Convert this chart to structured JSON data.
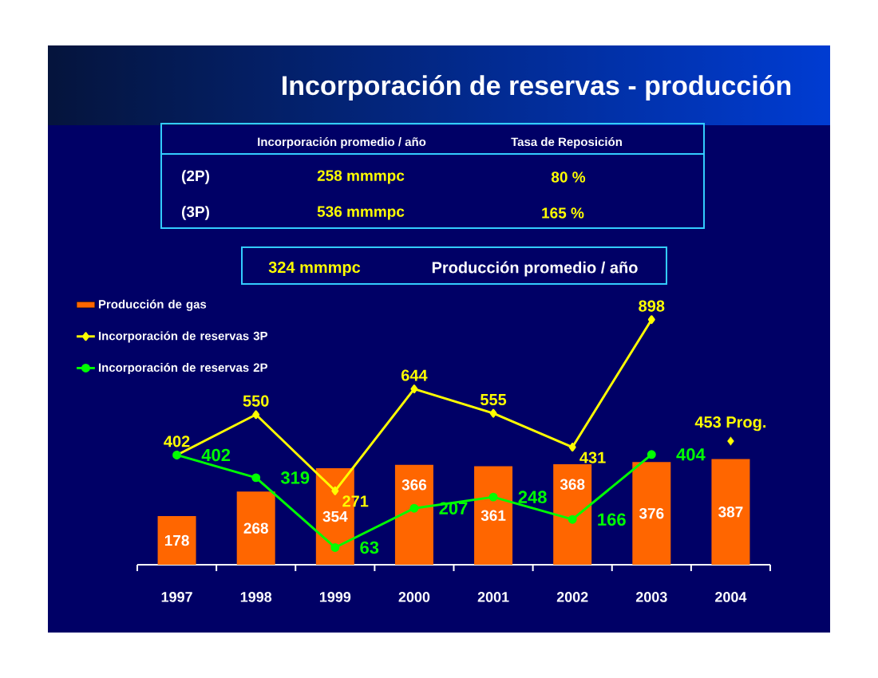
{
  "chart_data": {
    "type": "bar",
    "title": "Incorporación de reservas - producción",
    "categories": [
      "1997",
      "1998",
      "1999",
      "2000",
      "2001",
      "2002",
      "2003",
      "2004"
    ],
    "series": [
      {
        "name": "Producción de gas",
        "color": "#ff6600",
        "values": [
          178,
          268,
          354,
          366,
          361,
          368,
          376,
          387
        ]
      },
      {
        "name": "Incorporación de reservas 3P",
        "type": "line",
        "color": "#ffff00",
        "marker": "diamond",
        "values": [
          402,
          550,
          271,
          644,
          555,
          431,
          898,
          null
        ]
      },
      {
        "name": "Incorporación de reservas 2P",
        "type": "line",
        "color": "#00ff00",
        "marker": "circle",
        "values": [
          402,
          319,
          63,
          207,
          248,
          166,
          404,
          null
        ]
      },
      {
        "type": "scatter",
        "color": "#ffff00",
        "marker": "diamond",
        "values": [
          null,
          null,
          null,
          null,
          null,
          null,
          null,
          453
        ],
        "value_labels": [
          null,
          null,
          null,
          null,
          null,
          null,
          null,
          "453 Prog."
        ]
      }
    ],
    "data_labels": true,
    "legend": "top left",
    "annotations": [
      "Incorporación promedio / año",
      "Tasa de Reposición",
      "(2P)",
      "258 mmmpc",
      "80 %",
      "(3P)",
      "536 mmmpc",
      "165 %",
      "324 mmmpc",
      "Producción promedio / año"
    ]
  }
}
